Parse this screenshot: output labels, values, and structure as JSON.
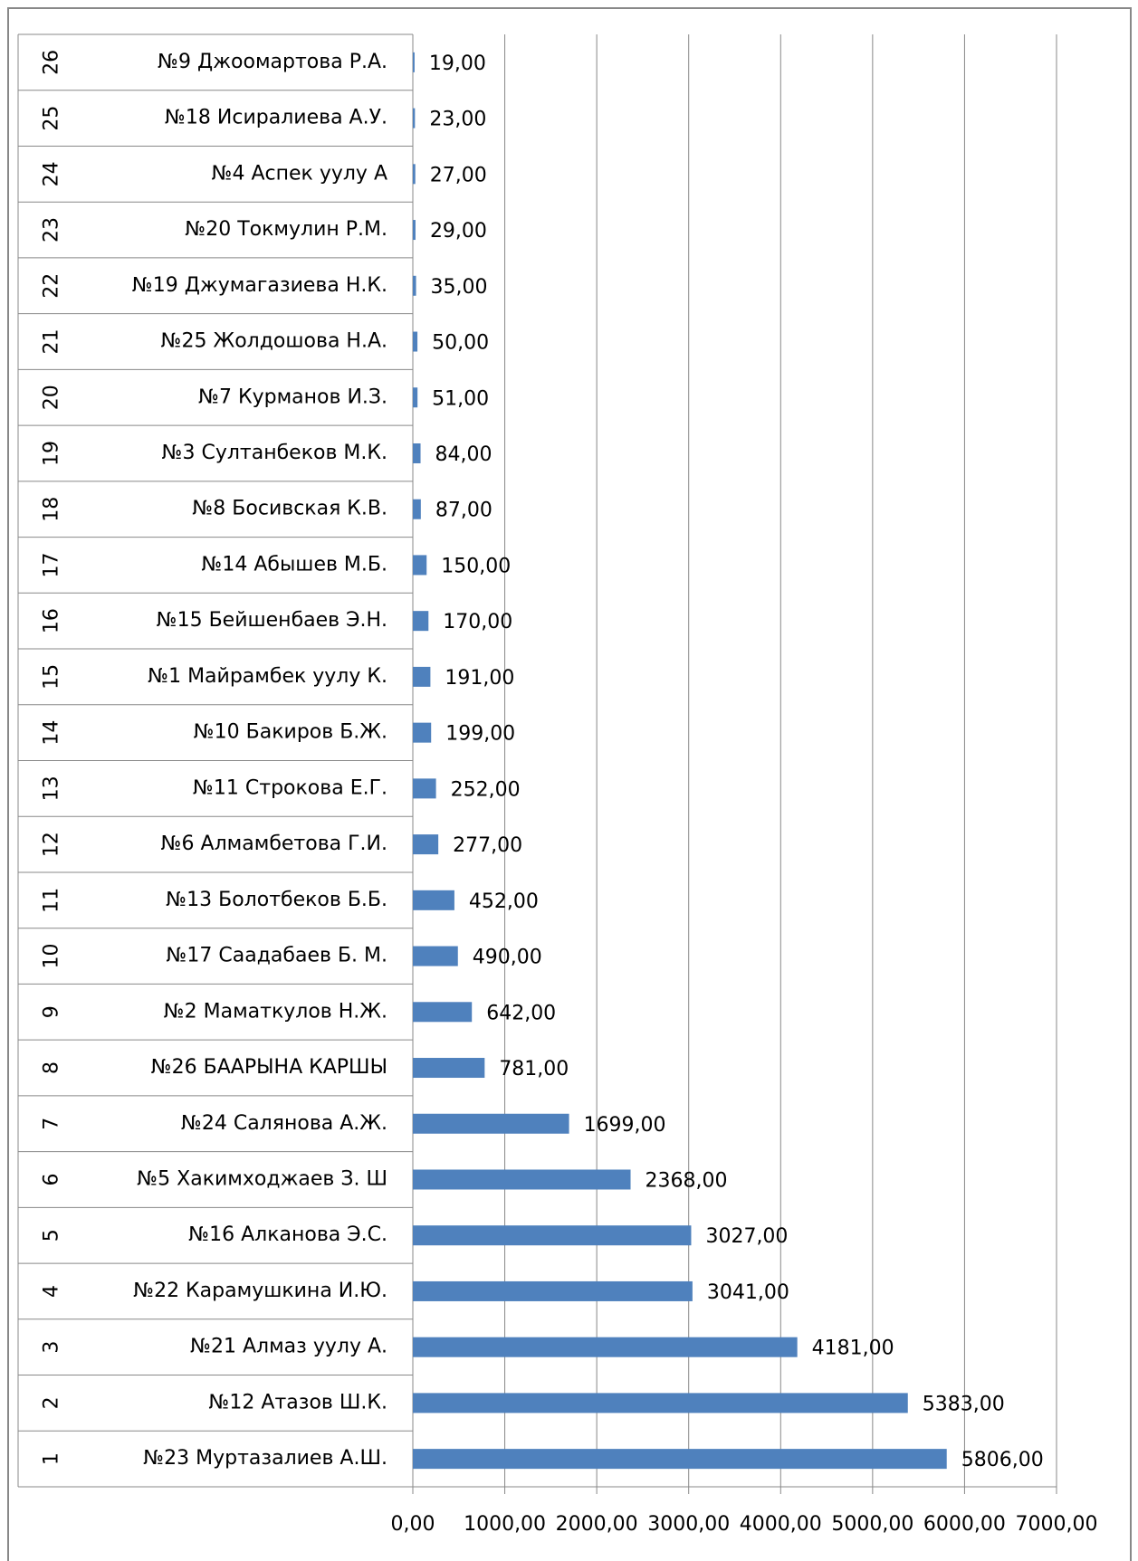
{
  "chart_data": {
    "type": "bar",
    "orientation": "horizontal",
    "category_numbers": [
      "1",
      "2",
      "3",
      "4",
      "5",
      "6",
      "7",
      "8",
      "9",
      "10",
      "11",
      "12",
      "13",
      "14",
      "15",
      "16",
      "17",
      "18",
      "19",
      "20",
      "21",
      "22",
      "23",
      "24",
      "25",
      "26"
    ],
    "categories": [
      "№23 Муртазалиев А.Ш.",
      "№12 Атазов Ш.К.",
      "№21 Алмаз уулу А.",
      "№22 Карамушкина И.Ю.",
      "№16 Алканова Э.С.",
      "№5 Хакимходжаев З. Ш",
      "№24 Салянова А.Ж.",
      "№26 БААРЫНА КАРШЫ",
      "№2 Маматкулов Н.Ж.",
      "№17 Саадабаев Б. М.",
      "№13 Болотбеков Б.Б.",
      "№6 Алмамбетова Г.И.",
      "№11 Строкова Е.Г.",
      "№10 Бакиров Б.Ж.",
      "№1 Майрамбек уулу К.",
      "№15 Бейшенбаев Э.Н.",
      "№14 Абышев М.Б.",
      "№8 Босивская К.В.",
      "№3 Султанбеков М.К.",
      "№7 Курманов И.З.",
      "№25 Жолдошова Н.А.",
      "№19 Джумагазиева Н.К.",
      "№20 Токмулин Р.М.",
      "№4 Аспек уулу А",
      "№18 Исиралиева А.У.",
      "№9 Джоомартова Р.А."
    ],
    "values": [
      5806,
      5383,
      4181,
      3041,
      3027,
      2368,
      1699,
      781,
      642,
      490,
      452,
      277,
      252,
      199,
      191,
      170,
      150,
      87,
      84,
      51,
      50,
      35,
      29,
      27,
      23,
      19
    ],
    "value_labels": [
      "5806,00",
      "5383,00",
      "4181,00",
      "3041,00",
      "3027,00",
      "2368,00",
      "1699,00",
      "781,00",
      "642,00",
      "490,00",
      "452,00",
      "277,00",
      "252,00",
      "199,00",
      "191,00",
      "170,00",
      "150,00",
      "87,00",
      "84,00",
      "51,00",
      "50,00",
      "35,00",
      "29,00",
      "27,00",
      "23,00",
      "19,00"
    ],
    "color": "#4f81bd",
    "xlim": [
      0,
      7000
    ],
    "xticks": [
      {
        "value": 0,
        "label": "0,00"
      },
      {
        "value": 1000,
        "label": "1000,00"
      },
      {
        "value": 2000,
        "label": "2000,00"
      },
      {
        "value": 3000,
        "label": "3000,00"
      },
      {
        "value": 4000,
        "label": "4000,00"
      },
      {
        "value": 5000,
        "label": "5000,00"
      },
      {
        "value": 6000,
        "label": "6000,00"
      },
      {
        "value": 7000,
        "label": "7000,00"
      }
    ],
    "grid": true
  }
}
